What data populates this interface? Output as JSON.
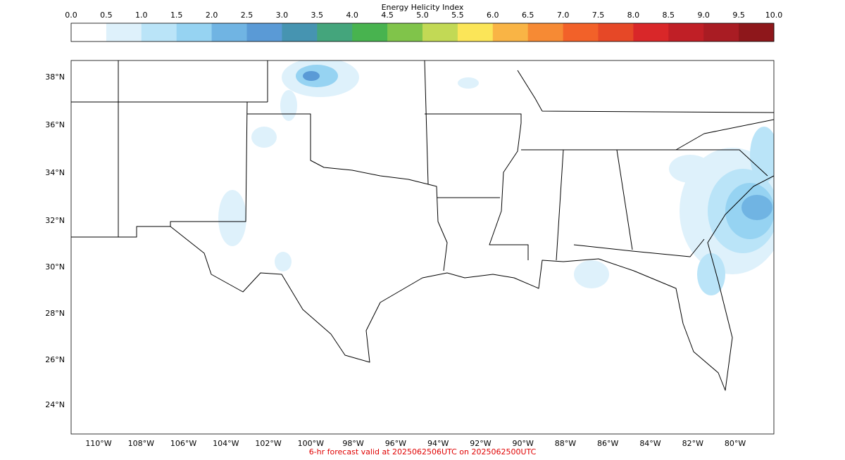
{
  "colorbar": {
    "title": "Energy Helicity Index",
    "ticks": [
      "0.0",
      "0.5",
      "1.0",
      "1.5",
      "2.0",
      "2.5",
      "3.0",
      "3.5",
      "4.0",
      "4.5",
      "5.0",
      "5.5",
      "6.0",
      "6.5",
      "7.0",
      "7.5",
      "8.0",
      "8.5",
      "9.0",
      "9.5",
      "10.0"
    ],
    "colors": [
      "#ffffff",
      "#def1fb",
      "#bae4f8",
      "#96d3f2",
      "#70b4e3",
      "#5a9ad6",
      "#4694b1",
      "#44a57c",
      "#48b34f",
      "#80c44a",
      "#c2d955",
      "#fbe558",
      "#f9b445",
      "#f68a34",
      "#f26129",
      "#e64827",
      "#d92729",
      "#c01f26",
      "#a91c23",
      "#8e171b"
    ]
  },
  "map": {
    "lat_labels": [
      "38°N",
      "36°N",
      "34°N",
      "32°N",
      "30°N",
      "28°N",
      "26°N",
      "24°N"
    ],
    "lon_labels": [
      "110°W",
      "108°W",
      "106°W",
      "104°W",
      "102°W",
      "100°W",
      "98°W",
      "96°W",
      "94°W",
      "92°W",
      "90°W",
      "88°W",
      "86°W",
      "84°W",
      "82°W",
      "80°W"
    ]
  },
  "footer": "6-hr forecast valid at 2025062506UTC on 2025062500UTC"
}
